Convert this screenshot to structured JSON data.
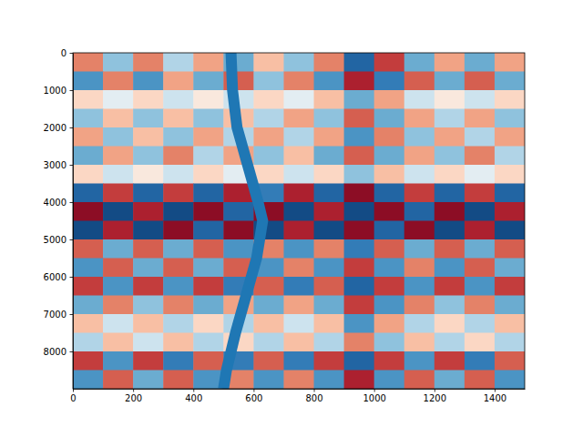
{
  "chart_data": {
    "type": "heatmap",
    "xlim": [
      0,
      1500
    ],
    "ylim": [
      9000,
      0
    ],
    "xticks": [
      0,
      200,
      400,
      600,
      800,
      1000,
      1200,
      1400
    ],
    "yticks": [
      0,
      1000,
      2000,
      3000,
      4000,
      5000,
      6000,
      7000,
      8000
    ],
    "x_edges": [
      0,
      100,
      200,
      300,
      400,
      500,
      600,
      700,
      800,
      900,
      1000,
      1100,
      1200,
      1300,
      1400,
      1500
    ],
    "y_edges": [
      0,
      500,
      1000,
      1500,
      2000,
      2500,
      3000,
      3500,
      4000,
      4500,
      5000,
      5500,
      6000,
      6500,
      7000,
      7500,
      8000,
      8500,
      9000
    ],
    "zlim": [
      -1,
      1
    ],
    "z": [
      [
        0.5,
        -0.4,
        0.5,
        -0.3,
        0.4,
        -0.5,
        0.3,
        -0.4,
        0.5,
        -0.8,
        0.7,
        -0.5,
        0.4,
        -0.5,
        0.4
      ],
      [
        -0.6,
        0.5,
        -0.6,
        0.4,
        -0.5,
        0.6,
        -0.4,
        0.5,
        -0.6,
        0.8,
        -0.7,
        0.6,
        -0.5,
        0.6,
        -0.5
      ],
      [
        0.2,
        -0.1,
        0.2,
        -0.2,
        0.1,
        -0.2,
        0.2,
        -0.1,
        0.3,
        -0.5,
        0.4,
        -0.2,
        0.1,
        -0.2,
        0.2
      ],
      [
        -0.4,
        0.3,
        -0.4,
        0.3,
        -0.4,
        0.3,
        -0.3,
        0.4,
        -0.4,
        0.6,
        -0.5,
        0.4,
        -0.3,
        0.4,
        -0.4
      ],
      [
        0.4,
        -0.4,
        0.3,
        -0.4,
        0.4,
        -0.3,
        0.4,
        -0.3,
        0.4,
        -0.6,
        0.5,
        -0.4,
        0.4,
        -0.3,
        0.4
      ],
      [
        -0.5,
        0.4,
        -0.4,
        0.5,
        -0.3,
        0.4,
        -0.4,
        0.3,
        -0.5,
        0.6,
        -0.5,
        0.4,
        -0.4,
        0.5,
        -0.3
      ],
      [
        0.2,
        -0.2,
        0.1,
        -0.2,
        0.2,
        -0.1,
        0.2,
        -0.2,
        0.2,
        -0.4,
        0.3,
        -0.2,
        0.2,
        -0.1,
        0.2
      ],
      [
        -0.8,
        0.7,
        -0.8,
        0.7,
        -0.8,
        0.8,
        -0.7,
        0.8,
        -0.8,
        0.9,
        -0.8,
        0.7,
        -0.8,
        0.7,
        -0.8
      ],
      [
        0.9,
        -0.9,
        0.8,
        -0.9,
        0.9,
        -0.8,
        0.9,
        -0.9,
        0.8,
        -0.9,
        0.9,
        -0.8,
        0.9,
        -0.9,
        0.8
      ],
      [
        -0.9,
        0.8,
        -0.9,
        0.9,
        -0.8,
        0.9,
        -0.9,
        0.8,
        -0.9,
        0.9,
        -0.8,
        0.9,
        -0.9,
        0.8,
        -0.9
      ],
      [
        0.6,
        -0.5,
        0.6,
        -0.5,
        0.6,
        -0.6,
        0.5,
        -0.6,
        0.5,
        -0.7,
        0.6,
        -0.5,
        0.6,
        -0.5,
        0.6
      ],
      [
        -0.6,
        0.6,
        -0.5,
        0.6,
        -0.5,
        0.6,
        -0.6,
        0.5,
        -0.6,
        0.7,
        -0.6,
        0.5,
        -0.6,
        0.6,
        -0.5
      ],
      [
        0.7,
        -0.6,
        0.7,
        -0.6,
        0.7,
        -0.7,
        0.6,
        -0.7,
        0.6,
        -0.8,
        0.7,
        -0.6,
        0.7,
        -0.6,
        0.7
      ],
      [
        -0.5,
        0.5,
        -0.4,
        0.5,
        -0.5,
        0.4,
        -0.5,
        0.4,
        -0.5,
        0.7,
        -0.6,
        0.5,
        -0.4,
        0.5,
        -0.5
      ],
      [
        0.3,
        -0.2,
        0.3,
        -0.3,
        0.2,
        -0.3,
        0.3,
        -0.2,
        0.3,
        -0.6,
        0.4,
        -0.3,
        0.2,
        -0.3,
        0.3
      ],
      [
        -0.3,
        0.3,
        -0.2,
        0.3,
        -0.3,
        0.2,
        -0.3,
        0.3,
        -0.3,
        0.5,
        -0.4,
        0.3,
        -0.3,
        0.2,
        -0.3
      ],
      [
        0.7,
        -0.6,
        0.7,
        -0.7,
        0.6,
        -0.7,
        0.6,
        -0.7,
        0.7,
        -0.8,
        0.7,
        -0.6,
        0.7,
        -0.7,
        0.6
      ],
      [
        -0.6,
        0.6,
        -0.5,
        0.6,
        -0.6,
        0.5,
        -0.6,
        0.5,
        -0.6,
        0.8,
        -0.6,
        0.6,
        -0.5,
        0.6,
        -0.6
      ]
    ],
    "series": [
      {
        "type": "line",
        "color": "#1f77b4",
        "x": [
          525,
          530,
          545,
          580,
          615,
          630,
          610,
          575,
          540,
          510,
          500
        ],
        "values": [
          0,
          1000,
          2000,
          3000,
          4000,
          4500,
          5500,
          6500,
          7500,
          8500,
          9000
        ]
      }
    ]
  }
}
